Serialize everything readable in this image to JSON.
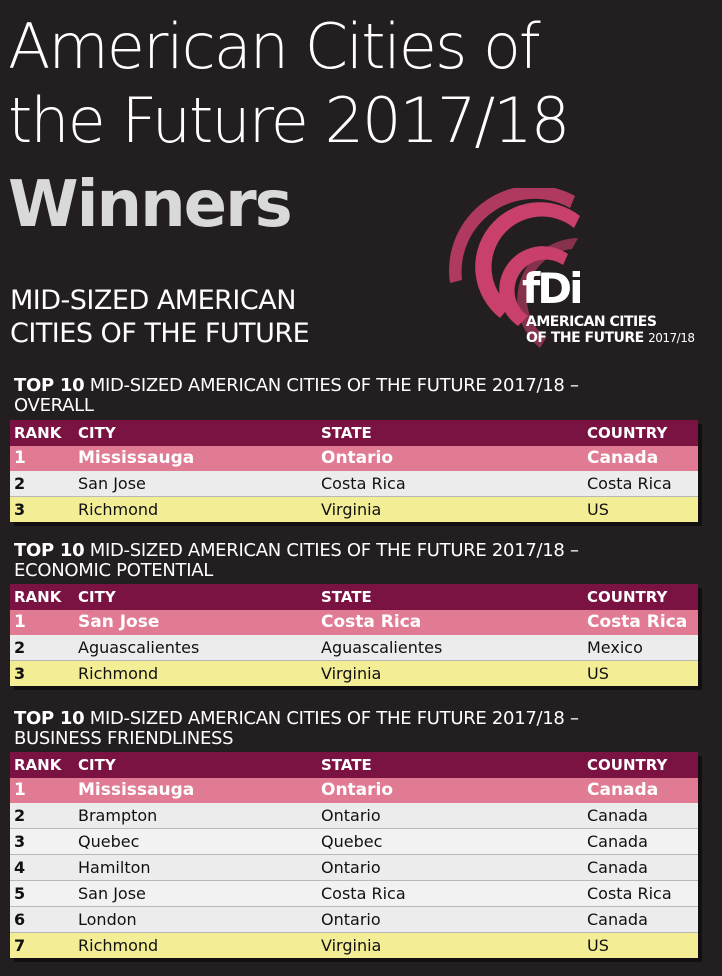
{
  "title_line1": "American Cities of",
  "title_line2": "the Future 2017/18",
  "winners": "Winners",
  "logo": {
    "brand": "fDi",
    "line1": "AMERICAN CITIES",
    "line2": "OF THE FUTURE",
    "year": "2017/18"
  },
  "section_line1": "MID-SIZED AMERICAN",
  "section_line2": "CITIES OF THE FUTURE",
  "columns": {
    "rank": "RANK",
    "city": "CITY",
    "state": "STATE",
    "country": "COUNTRY"
  },
  "tables": [
    {
      "heading_bold": "TOP 10",
      "heading_rest": " MID-SIZED AMERICAN CITIES OF THE FUTURE 2017/18 –",
      "heading_line2": "OVERALL",
      "rows": [
        {
          "rank": "1",
          "city": "Mississauga",
          "state": "Ontario",
          "country": "Canada"
        },
        {
          "rank": "2",
          "city": "San Jose",
          "state": "Costa Rica",
          "country": "Costa Rica"
        },
        {
          "rank": "3",
          "city": "Richmond",
          "state": "Virginia",
          "country": "US"
        }
      ]
    },
    {
      "heading_bold": "TOP 10",
      "heading_rest": " MID-SIZED AMERICAN CITIES OF THE FUTURE 2017/18 –",
      "heading_line2": "ECONOMIC POTENTIAL",
      "rows": [
        {
          "rank": "1",
          "city": "San Jose",
          "state": "Costa Rica",
          "country": "Costa Rica"
        },
        {
          "rank": "2",
          "city": "Aguascalientes",
          "state": "Aguascalientes",
          "country": "Mexico"
        },
        {
          "rank": "3",
          "city": "Richmond",
          "state": "Virginia",
          "country": "US"
        }
      ]
    },
    {
      "heading_bold": "TOP 10",
      "heading_rest": " MID-SIZED AMERICAN CITIES OF THE FUTURE 2017/18 –",
      "heading_line2": "BUSINESS FRIENDLINESS",
      "rows": [
        {
          "rank": "1",
          "city": "Mississauga",
          "state": "Ontario",
          "country": "Canada"
        },
        {
          "rank": "2",
          "city": "Brampton",
          "state": "Ontario",
          "country": "Canada"
        },
        {
          "rank": "3",
          "city": "Quebec",
          "state": "Quebec",
          "country": "Canada"
        },
        {
          "rank": "4",
          "city": "Hamilton",
          "state": "Ontario",
          "country": "Canada"
        },
        {
          "rank": "5",
          "city": "San Jose",
          "state": "Costa Rica",
          "country": "Costa Rica"
        },
        {
          "rank": "6",
          "city": "London",
          "state": "Ontario",
          "country": "Canada"
        },
        {
          "rank": "7",
          "city": "Richmond",
          "state": "Virginia",
          "country": "US"
        }
      ]
    }
  ],
  "colors": {
    "background": "#231f20",
    "header_row": "#7a1341",
    "first_row": "#e07b93",
    "last_row": "#f3ed96",
    "logo_arc": "#c9406b"
  }
}
